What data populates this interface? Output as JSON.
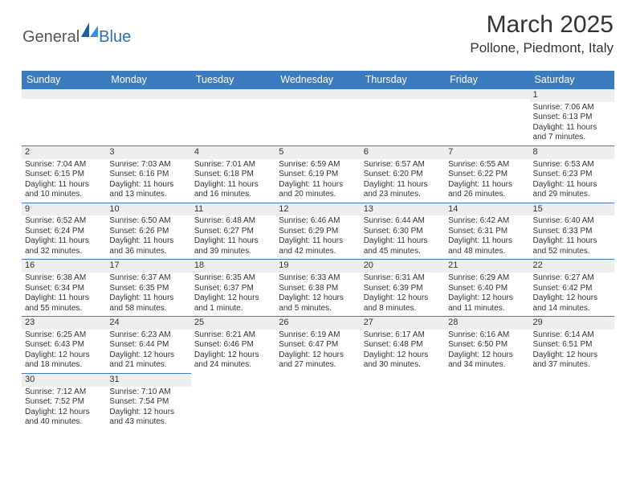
{
  "logo": {
    "text1": "General",
    "text2": "Blue"
  },
  "title": "March 2025",
  "location": "Pollone, Piedmont, Italy",
  "colors": {
    "header_bg": "#3b7bbf",
    "header_text": "#ffffff",
    "daynum_bg": "#eeeeee",
    "cell_border": "#3b7bbf"
  },
  "day_headers": [
    "Sunday",
    "Monday",
    "Tuesday",
    "Wednesday",
    "Thursday",
    "Friday",
    "Saturday"
  ],
  "weeks": [
    [
      null,
      null,
      null,
      null,
      null,
      null,
      {
        "n": "1",
        "sunrise": "Sunrise: 7:06 AM",
        "sunset": "Sunset: 6:13 PM",
        "day1": "Daylight: 11 hours",
        "day2": "and 7 minutes."
      }
    ],
    [
      {
        "n": "2",
        "sunrise": "Sunrise: 7:04 AM",
        "sunset": "Sunset: 6:15 PM",
        "day1": "Daylight: 11 hours",
        "day2": "and 10 minutes."
      },
      {
        "n": "3",
        "sunrise": "Sunrise: 7:03 AM",
        "sunset": "Sunset: 6:16 PM",
        "day1": "Daylight: 11 hours",
        "day2": "and 13 minutes."
      },
      {
        "n": "4",
        "sunrise": "Sunrise: 7:01 AM",
        "sunset": "Sunset: 6:18 PM",
        "day1": "Daylight: 11 hours",
        "day2": "and 16 minutes."
      },
      {
        "n": "5",
        "sunrise": "Sunrise: 6:59 AM",
        "sunset": "Sunset: 6:19 PM",
        "day1": "Daylight: 11 hours",
        "day2": "and 20 minutes."
      },
      {
        "n": "6",
        "sunrise": "Sunrise: 6:57 AM",
        "sunset": "Sunset: 6:20 PM",
        "day1": "Daylight: 11 hours",
        "day2": "and 23 minutes."
      },
      {
        "n": "7",
        "sunrise": "Sunrise: 6:55 AM",
        "sunset": "Sunset: 6:22 PM",
        "day1": "Daylight: 11 hours",
        "day2": "and 26 minutes."
      },
      {
        "n": "8",
        "sunrise": "Sunrise: 6:53 AM",
        "sunset": "Sunset: 6:23 PM",
        "day1": "Daylight: 11 hours",
        "day2": "and 29 minutes."
      }
    ],
    [
      {
        "n": "9",
        "sunrise": "Sunrise: 6:52 AM",
        "sunset": "Sunset: 6:24 PM",
        "day1": "Daylight: 11 hours",
        "day2": "and 32 minutes."
      },
      {
        "n": "10",
        "sunrise": "Sunrise: 6:50 AM",
        "sunset": "Sunset: 6:26 PM",
        "day1": "Daylight: 11 hours",
        "day2": "and 36 minutes."
      },
      {
        "n": "11",
        "sunrise": "Sunrise: 6:48 AM",
        "sunset": "Sunset: 6:27 PM",
        "day1": "Daylight: 11 hours",
        "day2": "and 39 minutes."
      },
      {
        "n": "12",
        "sunrise": "Sunrise: 6:46 AM",
        "sunset": "Sunset: 6:29 PM",
        "day1": "Daylight: 11 hours",
        "day2": "and 42 minutes."
      },
      {
        "n": "13",
        "sunrise": "Sunrise: 6:44 AM",
        "sunset": "Sunset: 6:30 PM",
        "day1": "Daylight: 11 hours",
        "day2": "and 45 minutes."
      },
      {
        "n": "14",
        "sunrise": "Sunrise: 6:42 AM",
        "sunset": "Sunset: 6:31 PM",
        "day1": "Daylight: 11 hours",
        "day2": "and 48 minutes."
      },
      {
        "n": "15",
        "sunrise": "Sunrise: 6:40 AM",
        "sunset": "Sunset: 6:33 PM",
        "day1": "Daylight: 11 hours",
        "day2": "and 52 minutes."
      }
    ],
    [
      {
        "n": "16",
        "sunrise": "Sunrise: 6:38 AM",
        "sunset": "Sunset: 6:34 PM",
        "day1": "Daylight: 11 hours",
        "day2": "and 55 minutes."
      },
      {
        "n": "17",
        "sunrise": "Sunrise: 6:37 AM",
        "sunset": "Sunset: 6:35 PM",
        "day1": "Daylight: 11 hours",
        "day2": "and 58 minutes."
      },
      {
        "n": "18",
        "sunrise": "Sunrise: 6:35 AM",
        "sunset": "Sunset: 6:37 PM",
        "day1": "Daylight: 12 hours",
        "day2": "and 1 minute."
      },
      {
        "n": "19",
        "sunrise": "Sunrise: 6:33 AM",
        "sunset": "Sunset: 6:38 PM",
        "day1": "Daylight: 12 hours",
        "day2": "and 5 minutes."
      },
      {
        "n": "20",
        "sunrise": "Sunrise: 6:31 AM",
        "sunset": "Sunset: 6:39 PM",
        "day1": "Daylight: 12 hours",
        "day2": "and 8 minutes."
      },
      {
        "n": "21",
        "sunrise": "Sunrise: 6:29 AM",
        "sunset": "Sunset: 6:40 PM",
        "day1": "Daylight: 12 hours",
        "day2": "and 11 minutes."
      },
      {
        "n": "22",
        "sunrise": "Sunrise: 6:27 AM",
        "sunset": "Sunset: 6:42 PM",
        "day1": "Daylight: 12 hours",
        "day2": "and 14 minutes."
      }
    ],
    [
      {
        "n": "23",
        "sunrise": "Sunrise: 6:25 AM",
        "sunset": "Sunset: 6:43 PM",
        "day1": "Daylight: 12 hours",
        "day2": "and 18 minutes."
      },
      {
        "n": "24",
        "sunrise": "Sunrise: 6:23 AM",
        "sunset": "Sunset: 6:44 PM",
        "day1": "Daylight: 12 hours",
        "day2": "and 21 minutes."
      },
      {
        "n": "25",
        "sunrise": "Sunrise: 6:21 AM",
        "sunset": "Sunset: 6:46 PM",
        "day1": "Daylight: 12 hours",
        "day2": "and 24 minutes."
      },
      {
        "n": "26",
        "sunrise": "Sunrise: 6:19 AM",
        "sunset": "Sunset: 6:47 PM",
        "day1": "Daylight: 12 hours",
        "day2": "and 27 minutes."
      },
      {
        "n": "27",
        "sunrise": "Sunrise: 6:17 AM",
        "sunset": "Sunset: 6:48 PM",
        "day1": "Daylight: 12 hours",
        "day2": "and 30 minutes."
      },
      {
        "n": "28",
        "sunrise": "Sunrise: 6:16 AM",
        "sunset": "Sunset: 6:50 PM",
        "day1": "Daylight: 12 hours",
        "day2": "and 34 minutes."
      },
      {
        "n": "29",
        "sunrise": "Sunrise: 6:14 AM",
        "sunset": "Sunset: 6:51 PM",
        "day1": "Daylight: 12 hours",
        "day2": "and 37 minutes."
      }
    ],
    [
      {
        "n": "30",
        "sunrise": "Sunrise: 7:12 AM",
        "sunset": "Sunset: 7:52 PM",
        "day1": "Daylight: 12 hours",
        "day2": "and 40 minutes."
      },
      {
        "n": "31",
        "sunrise": "Sunrise: 7:10 AM",
        "sunset": "Sunset: 7:54 PM",
        "day1": "Daylight: 12 hours",
        "day2": "and 43 minutes."
      },
      null,
      null,
      null,
      null,
      null
    ]
  ]
}
